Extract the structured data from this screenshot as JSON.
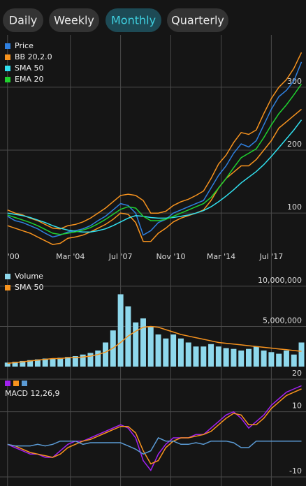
{
  "tabs": {
    "items": [
      "Daily",
      "Weekly",
      "Monthly",
      "Quarterly"
    ],
    "selected": "Monthly"
  },
  "chart_data": [
    {
      "type": "line",
      "x": [
        2000,
        2000.5,
        2001,
        2001.5,
        2002,
        2002.5,
        2003,
        2003.5,
        2004,
        2004.5,
        2005,
        2005.5,
        2006,
        2006.5,
        2007,
        2007.5,
        2008,
        2008.5,
        2009,
        2009.5,
        2010,
        2010.5,
        2011,
        2011.5,
        2012,
        2012.5,
        2013,
        2013.5,
        2014,
        2014.5,
        2015,
        2015.5,
        2016,
        2016.5,
        2017,
        2017.5,
        2018,
        2018.5,
        2019,
        2019.5
      ],
      "xlim": [
        1999.5,
        2019.8
      ],
      "xticks": [
        {
          "value": 2000,
          "label": "'00"
        },
        {
          "value": 2004.17,
          "label": "Mar '04"
        },
        {
          "value": 2007.5,
          "label": "Jul '07"
        },
        {
          "value": 2010.83,
          "label": "Nov '10"
        },
        {
          "value": 2014.17,
          "label": "Mar '14"
        },
        {
          "value": 2017.5,
          "label": "Jul '17"
        }
      ],
      "ylim": [
        17,
        383
      ],
      "yticks": [
        100,
        200,
        300
      ],
      "series": [
        {
          "name": "Price",
          "color": "#2f80e0",
          "values": [
            95,
            88,
            85,
            80,
            75,
            68,
            62,
            65,
            70,
            72,
            75,
            80,
            88,
            95,
            105,
            115,
            112,
            100,
            65,
            72,
            85,
            90,
            100,
            105,
            110,
            115,
            120,
            140,
            160,
            175,
            195,
            210,
            205,
            215,
            240,
            265,
            285,
            295,
            310,
            340
          ]
        },
        {
          "name": "BB 20,2.0",
          "color": "#f7931e",
          "values": [
            105,
            100,
            97,
            92,
            88,
            82,
            76,
            75,
            80,
            82,
            86,
            92,
            100,
            108,
            118,
            128,
            130,
            128,
            120,
            100,
            100,
            103,
            112,
            118,
            122,
            128,
            135,
            155,
            178,
            192,
            212,
            228,
            225,
            232,
            258,
            282,
            300,
            312,
            330,
            355
          ],
          "lower": [
            80,
            76,
            72,
            68,
            62,
            56,
            50,
            52,
            60,
            62,
            65,
            70,
            76,
            82,
            90,
            100,
            98,
            85,
            55,
            55,
            68,
            76,
            86,
            92,
            96,
            100,
            105,
            120,
            140,
            155,
            165,
            175,
            175,
            185,
            200,
            215,
            235,
            245,
            255,
            265
          ]
        },
        {
          "name": "SMA 50",
          "color": "#31e1f0",
          "values": [
            100,
            98,
            96,
            93,
            89,
            85,
            80,
            76,
            73,
            71,
            70,
            70,
            72,
            75,
            80,
            86,
            92,
            96,
            95,
            93,
            92,
            92,
            93,
            95,
            97,
            100,
            104,
            110,
            118,
            127,
            137,
            148,
            157,
            166,
            177,
            190,
            204,
            218,
            232,
            248
          ]
        },
        {
          "name": "EMA 20",
          "color": "#1fd12f",
          "values": [
            97,
            93,
            89,
            85,
            80,
            74,
            68,
            66,
            68,
            70,
            73,
            77,
            83,
            90,
            98,
            106,
            110,
            108,
            95,
            88,
            88,
            90,
            95,
            100,
            105,
            110,
            115,
            125,
            140,
            155,
            172,
            188,
            195,
            202,
            220,
            240,
            258,
            272,
            288,
            305
          ]
        }
      ]
    },
    {
      "type": "bar",
      "x": [
        2000,
        2000.5,
        2001,
        2001.5,
        2002,
        2002.5,
        2003,
        2003.5,
        2004,
        2004.5,
        2005,
        2005.5,
        2006,
        2006.5,
        2007,
        2007.5,
        2008,
        2008.5,
        2009,
        2009.5,
        2010,
        2010.5,
        2011,
        2011.5,
        2012,
        2012.5,
        2013,
        2013.5,
        2014,
        2014.5,
        2015,
        2015.5,
        2016,
        2016.5,
        2017,
        2017.5,
        2018,
        2018.5,
        2019,
        2019.5
      ],
      "xlim": [
        1999.5,
        2019.8
      ],
      "ylim": [
        0,
        12600000
      ],
      "yticks": [
        {
          "value": 5000000,
          "label": "5,000,000"
        },
        {
          "value": 10000000,
          "label": "10,000,000"
        }
      ],
      "series": [
        {
          "name": "Volume",
          "color": "#8ed8ec",
          "values": [
            500000,
            600000,
            700000,
            800000,
            900000,
            1000000,
            1000000,
            1100000,
            1200000,
            1300000,
            1500000,
            1700000,
            2000000,
            3000000,
            4500000,
            9000000,
            7500000,
            5500000,
            6000000,
            5000000,
            4000000,
            3500000,
            4000000,
            3500000,
            3000000,
            2500000,
            2500000,
            2800000,
            2500000,
            2300000,
            2200000,
            2000000,
            2200000,
            2500000,
            2000000,
            1800000,
            1600000,
            2000000,
            1500000,
            3000000
          ]
        },
        {
          "name": "SMA 50",
          "color": "#f7931e",
          "kind": "line",
          "values": [
            400000,
            500000,
            600000,
            700000,
            800000,
            900000,
            1000000,
            1000000,
            1100000,
            1100000,
            1200000,
            1300000,
            1500000,
            1800000,
            2300000,
            3000000,
            3800000,
            4400000,
            4900000,
            5000000,
            4900000,
            4600000,
            4300000,
            4000000,
            3800000,
            3600000,
            3400000,
            3200000,
            3000000,
            2900000,
            2800000,
            2700000,
            2600000,
            2500000,
            2400000,
            2300000,
            2200000,
            2100000,
            2000000,
            1900000
          ]
        }
      ]
    },
    {
      "type": "line",
      "x": [
        2000,
        2000.5,
        2001,
        2001.5,
        2002,
        2002.5,
        2003,
        2003.5,
        2004,
        2004.5,
        2005,
        2005.5,
        2006,
        2006.5,
        2007,
        2007.5,
        2008,
        2008.5,
        2009,
        2009.5,
        2010,
        2010.5,
        2011,
        2011.5,
        2012,
        2012.5,
        2013,
        2013.5,
        2014,
        2014.5,
        2015,
        2015.5,
        2016,
        2016.5,
        2017,
        2017.5,
        2018,
        2018.5,
        2019,
        2019.5
      ],
      "xlim": [
        1999.5,
        2019.8
      ],
      "ylim": [
        -12.8,
        22.8
      ],
      "yticks": [
        -10,
        10,
        20
      ],
      "legend_label": "MACD 12,26,9",
      "series": [
        {
          "color": "#a020f0",
          "values": [
            0,
            -1,
            -2,
            -3,
            -3,
            -4,
            -4,
            -2,
            0,
            1,
            1,
            2,
            3,
            4,
            5,
            6,
            5,
            2,
            -5,
            -8,
            -3,
            0,
            2,
            2,
            2,
            3,
            3,
            5,
            7,
            9,
            10,
            8,
            5,
            7,
            9,
            12,
            14,
            16,
            17,
            18
          ]
        },
        {
          "color": "#f7931e",
          "values": [
            0,
            -0.5,
            -1.5,
            -2.5,
            -3,
            -3.5,
            -4,
            -3,
            -1,
            0,
            1,
            1.5,
            2.5,
            3.5,
            4.5,
            5.5,
            5.5,
            3.5,
            -2,
            -6,
            -5,
            -1,
            1,
            2,
            2,
            2.5,
            3,
            4,
            6,
            8,
            9.5,
            9,
            6,
            6,
            8,
            11,
            13,
            15,
            16,
            17
          ]
        },
        {
          "color": "#5b9bd5",
          "values": [
            0,
            -0.5,
            -0.5,
            -0.5,
            0,
            -0.5,
            0,
            1,
            1,
            1,
            0,
            0.5,
            0.5,
            0.5,
            0.5,
            0.5,
            -0.5,
            -1.5,
            -3,
            -2,
            2,
            1,
            1,
            0,
            0,
            0.5,
            0,
            1,
            1,
            1,
            0.5,
            -1,
            -1,
            1,
            1,
            1,
            1,
            1,
            1,
            1
          ]
        }
      ]
    }
  ]
}
